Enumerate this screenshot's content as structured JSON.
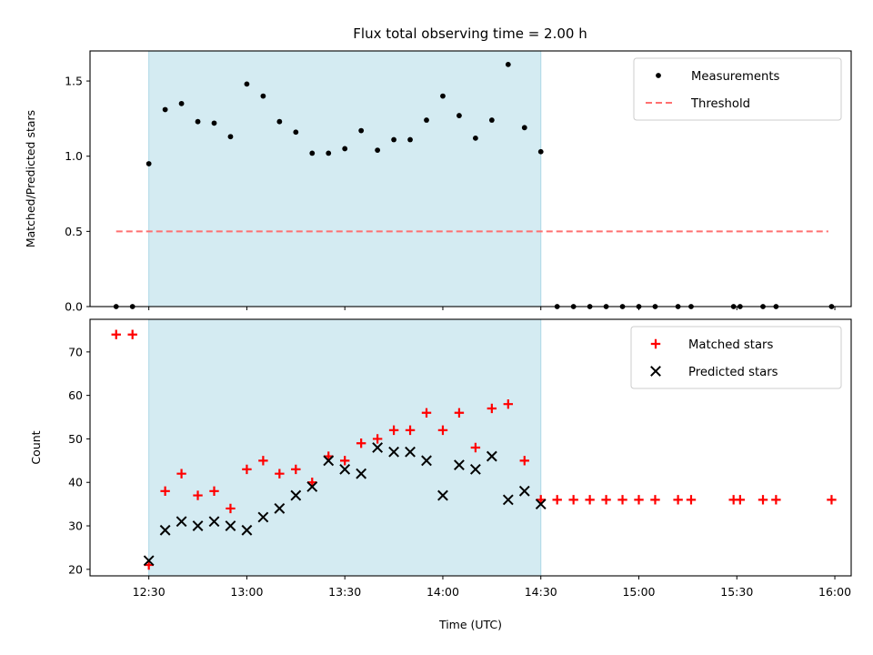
{
  "chart_data": [
    {
      "type": "scatter",
      "title": "Flux total observing time = 2.00 h",
      "xlabel": "",
      "ylabel": "Matched/Predicted stars",
      "xlim": [
        "12:12",
        "16:05"
      ],
      "ylim": [
        0,
        1.7
      ],
      "yticks": [
        "0.0",
        "0.5",
        "1.0",
        "1.5"
      ],
      "grid": false,
      "legend_position": "top-right",
      "shaded_interval": {
        "start": "12:30",
        "end": "14:30",
        "color": "#add8e6"
      },
      "threshold": {
        "name": "Threshold",
        "value": 0.5,
        "from": "12:20",
        "to": "15:58",
        "color": "#ff7070"
      },
      "series": [
        {
          "name": "Measurements",
          "marker": "dot",
          "color": "#000000",
          "points": [
            [
              "12:20",
              0.0
            ],
            [
              "12:25",
              0.0
            ],
            [
              "12:30",
              0.95
            ],
            [
              "12:35",
              1.31
            ],
            [
              "12:40",
              1.35
            ],
            [
              "12:45",
              1.23
            ],
            [
              "12:50",
              1.22
            ],
            [
              "12:55",
              1.13
            ],
            [
              "13:00",
              1.48
            ],
            [
              "13:05",
              1.4
            ],
            [
              "13:10",
              1.23
            ],
            [
              "13:15",
              1.16
            ],
            [
              "13:20",
              1.02
            ],
            [
              "13:25",
              1.02
            ],
            [
              "13:30",
              1.05
            ],
            [
              "13:35",
              1.17
            ],
            [
              "13:40",
              1.04
            ],
            [
              "13:45",
              1.11
            ],
            [
              "13:50",
              1.11
            ],
            [
              "13:55",
              1.24
            ],
            [
              "14:00",
              1.4
            ],
            [
              "14:05",
              1.27
            ],
            [
              "14:10",
              1.12
            ],
            [
              "14:15",
              1.24
            ],
            [
              "14:20",
              1.61
            ],
            [
              "14:25",
              1.19
            ],
            [
              "14:30",
              1.03
            ],
            [
              "14:35",
              0.0
            ],
            [
              "14:40",
              0.0
            ],
            [
              "14:45",
              0.0
            ],
            [
              "14:50",
              0.0
            ],
            [
              "14:55",
              0.0
            ],
            [
              "15:00",
              0.0
            ],
            [
              "15:05",
              0.0
            ],
            [
              "15:12",
              0.0
            ],
            [
              "15:16",
              0.0
            ],
            [
              "15:29",
              0.0
            ],
            [
              "15:31",
              0.0
            ],
            [
              "15:38",
              0.0
            ],
            [
              "15:42",
              0.0
            ],
            [
              "15:59",
              0.0
            ]
          ]
        }
      ]
    },
    {
      "type": "scatter",
      "title": "",
      "xlabel": "Time (UTC)",
      "ylabel": "Count",
      "xlim": [
        "12:12",
        "16:05"
      ],
      "ylim": [
        18.5,
        77.5
      ],
      "yticks": [
        "20",
        "30",
        "40",
        "50",
        "60",
        "70"
      ],
      "xticks": [
        "12:30",
        "13:00",
        "13:30",
        "14:00",
        "14:30",
        "15:00",
        "15:30",
        "16:00"
      ],
      "grid": false,
      "legend_position": "top-right",
      "shaded_interval": {
        "start": "12:30",
        "end": "14:30",
        "color": "#add8e6"
      },
      "series": [
        {
          "name": "Matched stars",
          "marker": "plus",
          "color": "#ff0000",
          "points": [
            [
              "12:20",
              74
            ],
            [
              "12:25",
              74
            ],
            [
              "12:30",
              21
            ],
            [
              "12:35",
              38
            ],
            [
              "12:40",
              42
            ],
            [
              "12:45",
              37
            ],
            [
              "12:50",
              38
            ],
            [
              "12:55",
              34
            ],
            [
              "13:00",
              43
            ],
            [
              "13:05",
              45
            ],
            [
              "13:10",
              42
            ],
            [
              "13:15",
              43
            ],
            [
              "13:20",
              40
            ],
            [
              "13:25",
              46
            ],
            [
              "13:30",
              45
            ],
            [
              "13:35",
              49
            ],
            [
              "13:40",
              50
            ],
            [
              "13:45",
              52
            ],
            [
              "13:50",
              52
            ],
            [
              "13:55",
              56
            ],
            [
              "14:00",
              52
            ],
            [
              "14:05",
              56
            ],
            [
              "14:10",
              48
            ],
            [
              "14:15",
              57
            ],
            [
              "14:20",
              58
            ],
            [
              "14:25",
              45
            ],
            [
              "14:30",
              36
            ],
            [
              "14:35",
              36
            ],
            [
              "14:40",
              36
            ],
            [
              "14:45",
              36
            ],
            [
              "14:50",
              36
            ],
            [
              "14:55",
              36
            ],
            [
              "15:00",
              36
            ],
            [
              "15:05",
              36
            ],
            [
              "15:12",
              36
            ],
            [
              "15:16",
              36
            ],
            [
              "15:29",
              36
            ],
            [
              "15:31",
              36
            ],
            [
              "15:38",
              36
            ],
            [
              "15:42",
              36
            ],
            [
              "15:59",
              36
            ]
          ]
        },
        {
          "name": "Predicted stars",
          "marker": "x",
          "color": "#000000",
          "points": [
            [
              "12:30",
              22
            ],
            [
              "12:35",
              29
            ],
            [
              "12:40",
              31
            ],
            [
              "12:45",
              30
            ],
            [
              "12:50",
              31
            ],
            [
              "12:55",
              30
            ],
            [
              "13:00",
              29
            ],
            [
              "13:05",
              32
            ],
            [
              "13:10",
              34
            ],
            [
              "13:15",
              37
            ],
            [
              "13:20",
              39
            ],
            [
              "13:25",
              45
            ],
            [
              "13:30",
              43
            ],
            [
              "13:35",
              42
            ],
            [
              "13:40",
              48
            ],
            [
              "13:45",
              47
            ],
            [
              "13:50",
              47
            ],
            [
              "13:55",
              45
            ],
            [
              "14:00",
              37
            ],
            [
              "14:05",
              44
            ],
            [
              "14:10",
              43
            ],
            [
              "14:15",
              46
            ],
            [
              "14:20",
              36
            ],
            [
              "14:25",
              38
            ],
            [
              "14:30",
              35
            ]
          ]
        }
      ]
    }
  ]
}
